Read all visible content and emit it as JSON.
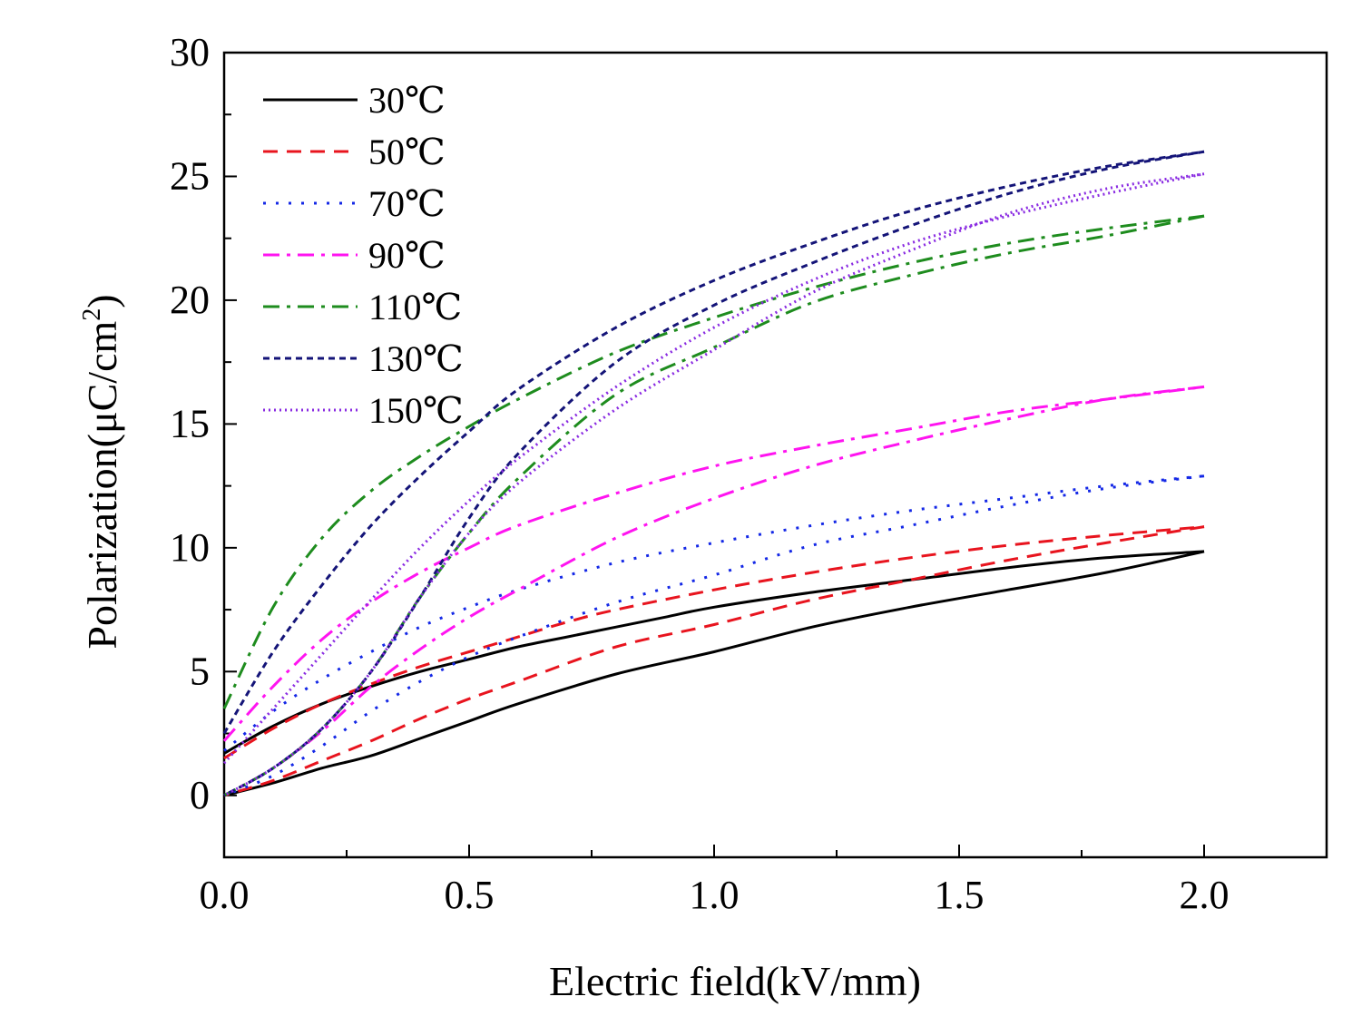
{
  "chart_data": {
    "type": "line",
    "title": "",
    "xlabel": "Electric field(kV/mm)",
    "ylabel_main": "Polarization(μC/cm",
    "ylabel_sup": "2",
    "ylabel_close": ")",
    "xlim": [
      0,
      2.25
    ],
    "ylim": [
      -2.5,
      30
    ],
    "xticks": [
      0.0,
      0.5,
      1.0,
      1.5,
      2.0
    ],
    "xtick_labels": [
      "0.0",
      "0.5",
      "1.0",
      "1.5",
      "2.0"
    ],
    "xminor": [
      0.25,
      0.75,
      1.25,
      1.75
    ],
    "yticks": [
      0,
      5,
      10,
      15,
      20,
      25,
      30
    ],
    "ytick_labels": [
      "0",
      "5",
      "10",
      "15",
      "20",
      "25",
      "30"
    ],
    "yminor": [
      2.5,
      7.5,
      12.5,
      17.5,
      22.5,
      27.5
    ],
    "grid": false,
    "legend_position": "top-left",
    "series": [
      {
        "name": "30℃",
        "color": "#000000",
        "style": "solid",
        "upper": [
          [
            0,
            1.7
          ],
          [
            0.1,
            2.8
          ],
          [
            0.2,
            3.7
          ],
          [
            0.3,
            4.4
          ],
          [
            0.4,
            5.0
          ],
          [
            0.5,
            5.5
          ],
          [
            0.6,
            6.0
          ],
          [
            0.7,
            6.4
          ],
          [
            0.8,
            6.8
          ],
          [
            0.9,
            7.2
          ],
          [
            1.0,
            7.6
          ],
          [
            1.2,
            8.2
          ],
          [
            1.4,
            8.7
          ],
          [
            1.6,
            9.2
          ],
          [
            1.8,
            9.6
          ],
          [
            2.0,
            9.85
          ]
        ],
        "lower": [
          [
            2.0,
            9.85
          ],
          [
            1.8,
            9.0
          ],
          [
            1.6,
            8.3
          ],
          [
            1.4,
            7.6
          ],
          [
            1.2,
            6.8
          ],
          [
            1.0,
            5.8
          ],
          [
            0.8,
            4.9
          ],
          [
            0.6,
            3.7
          ],
          [
            0.5,
            3.0
          ],
          [
            0.4,
            2.3
          ],
          [
            0.3,
            1.6
          ],
          [
            0.2,
            1.1
          ],
          [
            0.1,
            0.5
          ],
          [
            0,
            0
          ]
        ]
      },
      {
        "name": "50℃",
        "color": "#e8141e",
        "style": "dashed",
        "upper": [
          [
            0,
            1.5
          ],
          [
            0.1,
            2.7
          ],
          [
            0.2,
            3.7
          ],
          [
            0.3,
            4.5
          ],
          [
            0.4,
            5.2
          ],
          [
            0.5,
            5.8
          ],
          [
            0.6,
            6.4
          ],
          [
            0.7,
            7.0
          ],
          [
            0.8,
            7.5
          ],
          [
            1.0,
            8.3
          ],
          [
            1.2,
            9.0
          ],
          [
            1.4,
            9.6
          ],
          [
            1.6,
            10.1
          ],
          [
            1.8,
            10.5
          ],
          [
            2.0,
            10.85
          ]
        ],
        "lower": [
          [
            2.0,
            10.85
          ],
          [
            1.8,
            10.2
          ],
          [
            1.6,
            9.5
          ],
          [
            1.4,
            8.7
          ],
          [
            1.2,
            7.9
          ],
          [
            1.0,
            6.9
          ],
          [
            0.8,
            6.0
          ],
          [
            0.6,
            4.6
          ],
          [
            0.5,
            3.9
          ],
          [
            0.4,
            3.1
          ],
          [
            0.3,
            2.2
          ],
          [
            0.2,
            1.4
          ],
          [
            0.1,
            0.6
          ],
          [
            0,
            0
          ]
        ]
      },
      {
        "name": "70℃",
        "color": "#1428e6",
        "style": "dotted",
        "upper": [
          [
            0,
            1.8
          ],
          [
            0.1,
            3.4
          ],
          [
            0.2,
            4.7
          ],
          [
            0.3,
            5.8
          ],
          [
            0.4,
            6.8
          ],
          [
            0.5,
            7.6
          ],
          [
            0.6,
            8.3
          ],
          [
            0.8,
            9.4
          ],
          [
            1.0,
            10.2
          ],
          [
            1.2,
            10.9
          ],
          [
            1.4,
            11.5
          ],
          [
            1.6,
            12.0
          ],
          [
            1.8,
            12.5
          ],
          [
            2.0,
            12.9
          ]
        ],
        "lower": [
          [
            2.0,
            12.9
          ],
          [
            1.8,
            12.4
          ],
          [
            1.6,
            11.7
          ],
          [
            1.4,
            10.9
          ],
          [
            1.2,
            10.1
          ],
          [
            1.0,
            8.9
          ],
          [
            0.8,
            7.8
          ],
          [
            0.6,
            6.4
          ],
          [
            0.5,
            5.6
          ],
          [
            0.4,
            4.6
          ],
          [
            0.3,
            3.4
          ],
          [
            0.2,
            2.0
          ],
          [
            0.1,
            0.8
          ],
          [
            0,
            0
          ]
        ]
      },
      {
        "name": "90℃",
        "color": "#ff14f0",
        "style": "dashdot",
        "upper": [
          [
            0,
            2.2
          ],
          [
            0.1,
            4.4
          ],
          [
            0.2,
            6.3
          ],
          [
            0.3,
            7.8
          ],
          [
            0.4,
            9.0
          ],
          [
            0.5,
            10.0
          ],
          [
            0.6,
            10.9
          ],
          [
            0.8,
            12.2
          ],
          [
            1.0,
            13.3
          ],
          [
            1.2,
            14.1
          ],
          [
            1.4,
            14.8
          ],
          [
            1.6,
            15.5
          ],
          [
            1.8,
            16.0
          ],
          [
            2.0,
            16.5
          ]
        ],
        "lower": [
          [
            2.0,
            16.5
          ],
          [
            1.8,
            16.0
          ],
          [
            1.6,
            15.2
          ],
          [
            1.4,
            14.3
          ],
          [
            1.2,
            13.3
          ],
          [
            1.0,
            12.0
          ],
          [
            0.8,
            10.4
          ],
          [
            0.6,
            8.3
          ],
          [
            0.5,
            7.2
          ],
          [
            0.4,
            5.9
          ],
          [
            0.3,
            4.4
          ],
          [
            0.2,
            2.6
          ],
          [
            0.1,
            1.1
          ],
          [
            0,
            0
          ]
        ]
      },
      {
        "name": "110℃",
        "color": "#1e8c1e",
        "style": "dashdot",
        "upper": [
          [
            0,
            3.5
          ],
          [
            0.1,
            7.6
          ],
          [
            0.2,
            10.4
          ],
          [
            0.3,
            12.3
          ],
          [
            0.4,
            13.7
          ],
          [
            0.5,
            14.9
          ],
          [
            0.6,
            16.0
          ],
          [
            0.8,
            17.9
          ],
          [
            1.0,
            19.3
          ],
          [
            1.2,
            20.5
          ],
          [
            1.4,
            21.5
          ],
          [
            1.6,
            22.3
          ],
          [
            1.8,
            22.9
          ],
          [
            2.0,
            23.4
          ]
        ],
        "lower": [
          [
            2.0,
            23.4
          ],
          [
            1.8,
            22.6
          ],
          [
            1.6,
            21.9
          ],
          [
            1.4,
            21.0
          ],
          [
            1.2,
            19.9
          ],
          [
            1.0,
            18.1
          ],
          [
            0.8,
            16.2
          ],
          [
            0.6,
            12.8
          ],
          [
            0.5,
            10.6
          ],
          [
            0.4,
            8.0
          ],
          [
            0.3,
            5.0
          ],
          [
            0.2,
            2.7
          ],
          [
            0.1,
            1.1
          ],
          [
            0,
            0
          ]
        ]
      },
      {
        "name": "130℃",
        "color": "#141478",
        "style": "shortdash",
        "upper": [
          [
            0,
            2.5
          ],
          [
            0.1,
            5.8
          ],
          [
            0.2,
            8.5
          ],
          [
            0.3,
            10.9
          ],
          [
            0.4,
            12.9
          ],
          [
            0.5,
            14.7
          ],
          [
            0.6,
            16.4
          ],
          [
            0.8,
            18.9
          ],
          [
            1.0,
            20.8
          ],
          [
            1.2,
            22.3
          ],
          [
            1.4,
            23.6
          ],
          [
            1.6,
            24.6
          ],
          [
            1.8,
            25.4
          ],
          [
            2.0,
            26.0
          ]
        ],
        "lower": [
          [
            2.0,
            26.0
          ],
          [
            1.8,
            25.3
          ],
          [
            1.6,
            24.3
          ],
          [
            1.4,
            23.0
          ],
          [
            1.2,
            21.5
          ],
          [
            1.0,
            19.8
          ],
          [
            0.8,
            17.5
          ],
          [
            0.6,
            13.8
          ],
          [
            0.5,
            11.2
          ],
          [
            0.4,
            8.0
          ],
          [
            0.3,
            5.0
          ],
          [
            0.2,
            2.7
          ],
          [
            0.1,
            1.1
          ],
          [
            0,
            0
          ]
        ]
      },
      {
        "name": "150℃",
        "color": "#8a2be2",
        "style": "finedot",
        "upper": [
          [
            0,
            1.3
          ],
          [
            0.1,
            3.5
          ],
          [
            0.2,
            5.7
          ],
          [
            0.3,
            7.9
          ],
          [
            0.4,
            10.0
          ],
          [
            0.5,
            11.9
          ],
          [
            0.6,
            13.6
          ],
          [
            0.8,
            16.5
          ],
          [
            1.0,
            18.9
          ],
          [
            1.2,
            20.8
          ],
          [
            1.4,
            22.3
          ],
          [
            1.6,
            23.4
          ],
          [
            1.8,
            24.3
          ],
          [
            2.0,
            25.1
          ]
        ],
        "lower": [
          [
            2.0,
            25.1
          ],
          [
            1.8,
            24.5
          ],
          [
            1.6,
            23.5
          ],
          [
            1.4,
            22.0
          ],
          [
            1.2,
            20.3
          ],
          [
            1.0,
            18.0
          ],
          [
            0.8,
            15.6
          ],
          [
            0.6,
            12.6
          ],
          [
            0.5,
            10.6
          ],
          [
            0.4,
            8.0
          ],
          [
            0.3,
            5.0
          ],
          [
            0.2,
            2.7
          ],
          [
            0.1,
            1.1
          ],
          [
            0,
            0
          ]
        ]
      }
    ]
  }
}
